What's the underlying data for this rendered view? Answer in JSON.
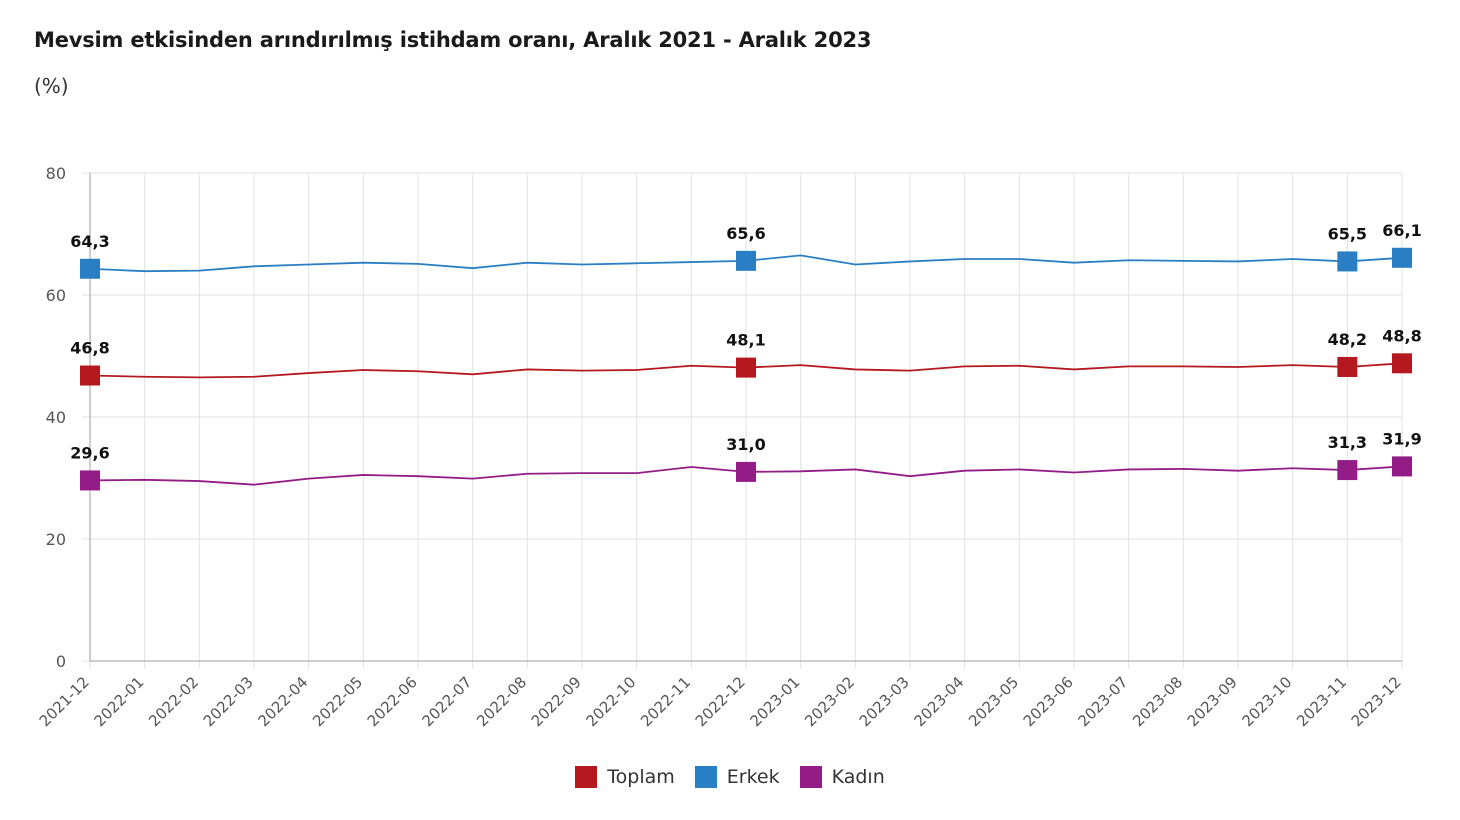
{
  "title": "Mevsim etkisinden arındırılmış istihdam oranı, Aralık 2021 - Aralık 2023",
  "subtitle": "(%)",
  "chart_data": {
    "type": "line",
    "title": "Mevsim etkisinden arındırılmış istihdam oranı, Aralık 2021 - Aralık 2023",
    "ylabel": "(%)",
    "xlabel": "",
    "ylim": [
      0,
      80
    ],
    "yticks": [
      0,
      20,
      40,
      60,
      80
    ],
    "grid": true,
    "legend_position": "bottom",
    "x": [
      "2021-12",
      "2022-01",
      "2022-02",
      "2022-03",
      "2022-04",
      "2022-05",
      "2022-06",
      "2022-07",
      "2022-08",
      "2022-09",
      "2022-10",
      "2022-11",
      "2022-12",
      "2023-01",
      "2023-02",
      "2023-03",
      "2023-04",
      "2023-05",
      "2023-06",
      "2023-07",
      "2023-08",
      "2023-09",
      "2023-10",
      "2023-11",
      "2023-12"
    ],
    "series": [
      {
        "name": "Toplam",
        "color": "#b5191f",
        "values": [
          46.8,
          46.6,
          46.5,
          46.6,
          47.2,
          47.7,
          47.5,
          47.0,
          47.8,
          47.6,
          47.7,
          48.4,
          48.1,
          48.5,
          47.8,
          47.6,
          48.3,
          48.4,
          47.8,
          48.3,
          48.3,
          48.2,
          48.5,
          48.2,
          48.8
        ],
        "labels": {
          "0": "46,8",
          "12": "48,1",
          "23": "48,2",
          "24": "48,8"
        }
      },
      {
        "name": "Erkek",
        "color": "#2a7fc4",
        "values": [
          64.3,
          63.9,
          64.0,
          64.7,
          65.0,
          65.3,
          65.1,
          64.4,
          65.3,
          65.0,
          65.2,
          65.4,
          65.6,
          66.5,
          65.0,
          65.5,
          65.9,
          65.9,
          65.3,
          65.7,
          65.6,
          65.5,
          65.9,
          65.5,
          66.1
        ],
        "labels": {
          "0": "64,3",
          "12": "65,6",
          "23": "65,5",
          "24": "66,1"
        }
      },
      {
        "name": "Kadın",
        "color": "#931c87",
        "values": [
          29.6,
          29.7,
          29.5,
          28.9,
          29.9,
          30.5,
          30.3,
          29.9,
          30.7,
          30.8,
          30.8,
          31.8,
          31.0,
          31.1,
          31.4,
          30.3,
          31.2,
          31.4,
          30.9,
          31.4,
          31.5,
          31.2,
          31.6,
          31.3,
          31.9
        ],
        "labels": {
          "0": "29,6",
          "12": "31,0",
          "23": "31,3",
          "24": "31,9"
        }
      }
    ]
  },
  "legend": [
    {
      "name": "Toplam",
      "color": "#b5191f"
    },
    {
      "name": "Erkek",
      "color": "#2a7fc4"
    },
    {
      "name": "Kadın",
      "color": "#931c87"
    }
  ]
}
